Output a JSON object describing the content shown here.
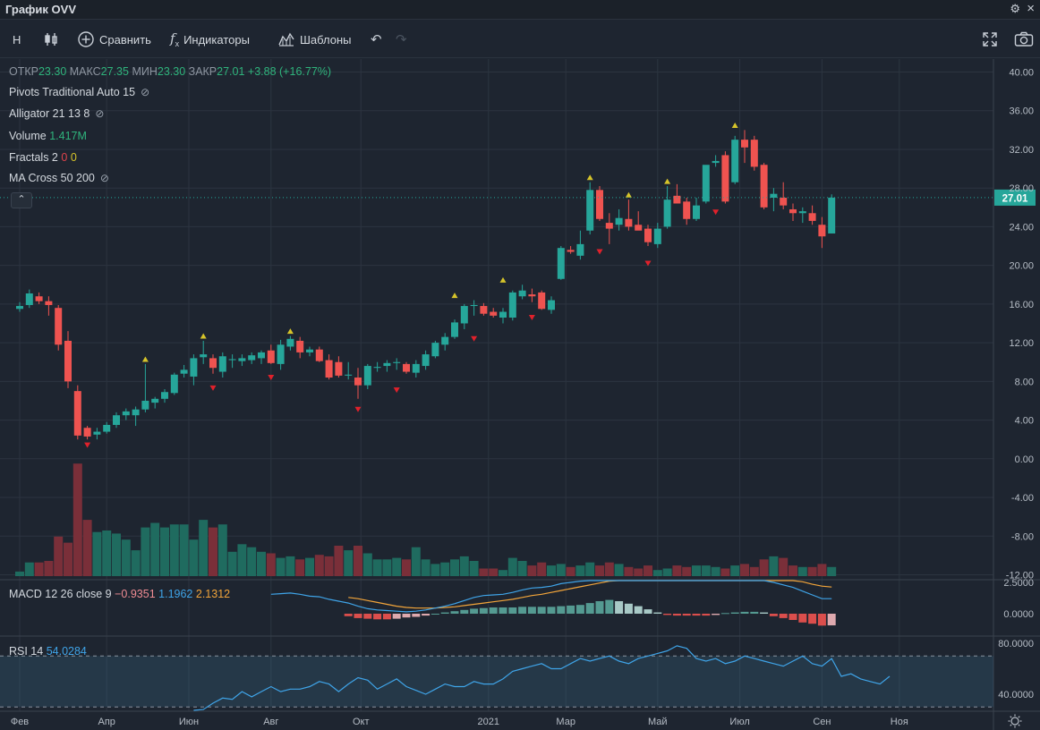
{
  "window": {
    "title": "График OVV"
  },
  "toolbar": {
    "interval": "H",
    "compare": "Сравнить",
    "indicators": "Индикаторы",
    "templates": "Шаблоны"
  },
  "ohlc": {
    "open_label": "ОТКР",
    "open": "23.30",
    "high_label": "МАКС",
    "high": "27.35",
    "low_label": "МИН",
    "low": "23.30",
    "close_label": "ЗАКР",
    "close": "27.01",
    "change": "+3.88 (+16.77%)"
  },
  "indicators": {
    "pivots": "Pivots Traditional Auto 15",
    "alligator": "Alligator 21 13 8",
    "volume_label": "Volume",
    "volume_value": "1.417M",
    "fractals_label": "Fractals 2",
    "fractals_down": "0",
    "fractals_up": "0",
    "ma_cross": "MA Cross 50 200",
    "macd_label": "MACD 12 26 close 9",
    "macd_hist": "−0.9351",
    "macd_line": "1.1962",
    "macd_signal": "2.1312",
    "rsi_label": "RSI 14",
    "rsi_value": "54.0284"
  },
  "colors": {
    "up": "#26a69a",
    "down": "#ef5350",
    "macd": "#3fa4e8",
    "signal": "#f3a53a",
    "rsi": "#3fa4e8",
    "fractal_up": "#d6c42a",
    "fractal_down": "#e0212b"
  },
  "chart_data": [
    {
      "type": "candlestick",
      "title": "OVV",
      "ylim": [
        -12,
        42
      ],
      "y_ticks": [
        "40.00",
        "36.00",
        "32.00",
        "28.00",
        "24.00",
        "20.00",
        "16.00",
        "12.00",
        "8.00",
        "4.00",
        "0.00",
        "-4.00",
        "-8.00",
        "-12.00"
      ],
      "last_price": "27.01",
      "x_ticks": [
        "Фев",
        "Апр",
        "Июн",
        "Авг",
        "Окт",
        "2021",
        "Мар",
        "Май",
        "Июл",
        "Сен",
        "Ноя"
      ],
      "x_tick_index": [
        0,
        9,
        17.5,
        26,
        35.3,
        48.5,
        56.5,
        66,
        74.5,
        83,
        91
      ],
      "candles": [
        [
          15.5,
          16.2,
          15.2,
          15.8
        ],
        [
          15.9,
          17.5,
          15.6,
          17.1
        ],
        [
          16.8,
          17.2,
          16.0,
          16.3
        ],
        [
          16.3,
          16.8,
          14.8,
          15.9
        ],
        [
          15.6,
          15.9,
          11.2,
          11.8
        ],
        [
          12.2,
          13.2,
          7.3,
          8.0
        ],
        [
          7.0,
          7.6,
          2.0,
          2.4
        ],
        [
          3.2,
          3.4,
          2.0,
          2.3
        ],
        [
          2.5,
          3.2,
          2.0,
          2.8
        ],
        [
          2.8,
          3.8,
          2.6,
          3.5
        ],
        [
          3.5,
          4.8,
          3.2,
          4.5
        ],
        [
          4.5,
          5.2,
          4.0,
          4.9
        ],
        [
          4.5,
          5.4,
          3.4,
          5.1
        ],
        [
          5.1,
          9.8,
          4.8,
          6.0
        ],
        [
          5.8,
          6.4,
          5.2,
          6.2
        ],
        [
          6.2,
          7.2,
          5.8,
          6.9
        ],
        [
          6.8,
          8.9,
          6.6,
          8.7
        ],
        [
          8.8,
          9.7,
          8.4,
          9.2
        ],
        [
          8.5,
          10.8,
          7.6,
          10.4
        ],
        [
          10.5,
          12.2,
          9.8,
          10.8
        ],
        [
          10.4,
          10.8,
          8.8,
          9.4
        ],
        [
          9.0,
          11.0,
          8.4,
          10.6
        ],
        [
          10.2,
          10.8,
          9.4,
          10.3
        ],
        [
          10.1,
          10.8,
          9.6,
          10.4
        ],
        [
          10.2,
          11.0,
          9.8,
          10.7
        ],
        [
          10.4,
          11.2,
          9.8,
          11.0
        ],
        [
          11.2,
          11.8,
          9.8,
          9.9
        ],
        [
          9.8,
          12.3,
          9.2,
          11.8
        ],
        [
          11.6,
          12.7,
          11.2,
          12.4
        ],
        [
          12.2,
          12.6,
          10.4,
          11.0
        ],
        [
          11.0,
          11.6,
          10.6,
          11.3
        ],
        [
          11.3,
          11.6,
          10.0,
          10.1
        ],
        [
          10.2,
          10.8,
          8.2,
          8.4
        ],
        [
          10.0,
          10.6,
          8.4,
          8.6
        ],
        [
          8.6,
          10.0,
          8.2,
          8.7
        ],
        [
          8.4,
          9.4,
          6.2,
          7.6
        ],
        [
          7.6,
          9.8,
          7.2,
          9.6
        ],
        [
          9.4,
          10.0,
          9.0,
          9.5
        ],
        [
          9.6,
          10.2,
          9.0,
          9.9
        ],
        [
          9.9,
          10.4,
          9.2,
          10.0
        ],
        [
          9.8,
          10.0,
          8.8,
          9.0
        ],
        [
          8.9,
          10.2,
          8.4,
          9.8
        ],
        [
          9.6,
          11.2,
          9.2,
          10.8
        ],
        [
          10.6,
          12.2,
          10.4,
          12.0
        ],
        [
          11.8,
          13.0,
          11.2,
          12.6
        ],
        [
          12.6,
          14.4,
          12.4,
          14.1
        ],
        [
          14.0,
          16.0,
          13.4,
          15.8
        ],
        [
          15.8,
          16.4,
          14.8,
          15.9
        ],
        [
          15.8,
          16.1,
          14.8,
          15.0
        ],
        [
          15.2,
          15.6,
          14.6,
          14.8
        ],
        [
          14.6,
          15.6,
          14.0,
          15.2
        ],
        [
          14.6,
          17.4,
          14.3,
          17.2
        ],
        [
          16.8,
          18.0,
          16.5,
          17.4
        ],
        [
          17.0,
          17.6,
          16.2,
          16.8
        ],
        [
          17.2,
          17.4,
          15.4,
          15.5
        ],
        [
          15.4,
          16.8,
          15.0,
          16.4
        ],
        [
          18.6,
          22.0,
          18.5,
          21.8
        ],
        [
          21.6,
          22.0,
          21.2,
          21.4
        ],
        [
          21.0,
          23.6,
          20.6,
          22.2
        ],
        [
          23.6,
          28.6,
          23.2,
          27.8
        ],
        [
          27.8,
          28.2,
          24.6,
          24.8
        ],
        [
          24.4,
          25.4,
          22.2,
          23.8
        ],
        [
          24.2,
          25.8,
          23.6,
          24.9
        ],
        [
          24.8,
          26.8,
          23.6,
          24.0
        ],
        [
          24.2,
          25.6,
          23.8,
          23.6
        ],
        [
          23.8,
          24.2,
          22.0,
          22.4
        ],
        [
          22.2,
          24.4,
          21.8,
          23.8
        ],
        [
          24.0,
          28.2,
          23.8,
          26.8
        ],
        [
          27.2,
          28.4,
          26.8,
          26.4
        ],
        [
          26.6,
          27.0,
          24.2,
          24.8
        ],
        [
          24.8,
          27.0,
          24.6,
          26.2
        ],
        [
          26.6,
          30.2,
          26.4,
          30.4
        ],
        [
          30.6,
          31.4,
          30.2,
          30.8
        ],
        [
          31.4,
          31.8,
          26.4,
          26.6
        ],
        [
          28.6,
          33.4,
          28.4,
          33.0
        ],
        [
          33.0,
          34.0,
          30.6,
          32.2
        ],
        [
          33.0,
          33.4,
          29.8,
          30.2
        ],
        [
          30.4,
          30.6,
          25.8,
          26.0
        ],
        [
          27.0,
          28.0,
          25.6,
          27.4
        ],
        [
          27.0,
          28.6,
          25.8,
          26.2
        ],
        [
          25.8,
          26.4,
          24.6,
          25.4
        ],
        [
          25.4,
          26.0,
          24.4,
          25.6
        ],
        [
          25.4,
          26.2,
          24.2,
          24.6
        ],
        [
          24.2,
          25.0,
          21.8,
          23.0
        ],
        [
          23.3,
          27.35,
          23.3,
          27.01
        ]
      ],
      "volumes": [
        0.15,
        0.45,
        0.45,
        0.5,
        1.3,
        1.1,
        3.7,
        1.85,
        1.45,
        1.5,
        1.4,
        1.2,
        0.85,
        1.6,
        1.75,
        1.6,
        1.7,
        1.7,
        1.2,
        1.85,
        1.6,
        1.7,
        0.8,
        1.05,
        0.95,
        0.8,
        0.75,
        0.6,
        0.65,
        0.55,
        0.6,
        0.7,
        0.65,
        1.0,
        0.85,
        1.0,
        0.75,
        0.55,
        0.55,
        0.6,
        0.55,
        0.95,
        0.55,
        0.4,
        0.45,
        0.55,
        0.65,
        0.5,
        0.25,
        0.25,
        0.2,
        0.6,
        0.5,
        0.35,
        0.45,
        0.35,
        0.4,
        0.3,
        0.35,
        0.45,
        0.35,
        0.45,
        0.4,
        0.3,
        0.25,
        0.35,
        0.2,
        0.25,
        0.35,
        0.3,
        0.35,
        0.35,
        0.3,
        0.25,
        0.35,
        0.4,
        0.3,
        0.55,
        0.65,
        0.6,
        0.35,
        0.3,
        0.3,
        0.4,
        0.3
      ],
      "fractals_up": [
        {
          "i": 13,
          "y": 10.3
        },
        {
          "i": 19,
          "y": 12.7
        },
        {
          "i": 28,
          "y": 13.2
        },
        {
          "i": 45,
          "y": 16.9
        },
        {
          "i": 50,
          "y": 18.5
        },
        {
          "i": 59,
          "y": 29.1
        },
        {
          "i": 63,
          "y": 27.3
        },
        {
          "i": 67,
          "y": 28.7
        },
        {
          "i": 74,
          "y": 34.5
        }
      ],
      "fractals_down": [
        {
          "i": 7,
          "y": 1.4
        },
        {
          "i": 20,
          "y": 7.3
        },
        {
          "i": 26,
          "y": 8.4
        },
        {
          "i": 35,
          "y": 5.1
        },
        {
          "i": 39,
          "y": 7.1
        },
        {
          "i": 47,
          "y": 12.4
        },
        {
          "i": 53,
          "y": 14.6
        },
        {
          "i": 60,
          "y": 21.4
        },
        {
          "i": 65,
          "y": 20.2
        },
        {
          "i": 72,
          "y": 25.5
        }
      ]
    },
    {
      "type": "line",
      "title": "MACD 12 26 close 9",
      "y_ticks": [
        "2.5000",
        "0.0000"
      ],
      "ylim": [
        -1.0,
        2.6
      ],
      "macd": [
        null,
        null,
        null,
        null,
        null,
        null,
        null,
        null,
        null,
        null,
        null,
        null,
        null,
        null,
        null,
        null,
        null,
        null,
        null,
        null,
        null,
        null,
        null,
        null,
        null,
        null,
        1.55,
        1.6,
        1.65,
        1.55,
        1.4,
        1.35,
        1.15,
        1.0,
        0.85,
        0.6,
        0.4,
        0.3,
        0.25,
        0.2,
        0.15,
        0.2,
        0.3,
        0.45,
        0.6,
        0.8,
        1.05,
        1.3,
        1.45,
        1.5,
        1.55,
        1.7,
        1.9,
        2.05,
        2.1,
        2.2,
        2.4,
        2.5,
        2.6,
        2.7,
        2.8,
        2.9,
        3.0,
        3.0,
        2.9,
        2.8,
        2.7,
        2.8,
        2.9,
        2.8,
        2.7,
        2.8,
        2.9,
        2.8,
        3.0,
        3.1,
        3.1,
        2.8,
        2.5,
        2.3,
        2.1,
        1.8,
        1.5,
        1.2,
        1.2
      ],
      "signal": [
        null,
        null,
        null,
        null,
        null,
        null,
        null,
        null,
        null,
        null,
        null,
        null,
        null,
        null,
        null,
        null,
        null,
        null,
        null,
        null,
        null,
        null,
        null,
        null,
        null,
        null,
        null,
        null,
        null,
        null,
        null,
        null,
        null,
        null,
        1.3,
        1.2,
        1.05,
        0.9,
        0.75,
        0.6,
        0.5,
        0.45,
        0.45,
        0.45,
        0.5,
        0.55,
        0.65,
        0.75,
        0.85,
        0.95,
        1.05,
        1.15,
        1.3,
        1.45,
        1.55,
        1.7,
        1.85,
        2.0,
        2.15,
        2.3,
        2.45,
        2.6,
        2.7,
        2.8,
        2.85,
        2.85,
        2.85,
        2.85,
        2.85,
        2.85,
        2.85,
        2.85,
        2.85,
        2.85,
        2.9,
        2.95,
        3.0,
        3.0,
        2.95,
        2.85,
        2.7,
        2.55,
        2.35,
        2.2,
        2.13
      ],
      "histogram": [
        null,
        null,
        null,
        null,
        null,
        null,
        null,
        null,
        null,
        null,
        null,
        null,
        null,
        null,
        null,
        null,
        null,
        null,
        null,
        null,
        null,
        null,
        null,
        null,
        null,
        null,
        null,
        null,
        null,
        null,
        null,
        null,
        null,
        null,
        -0.2,
        -0.35,
        -0.4,
        -0.45,
        -0.45,
        -0.4,
        -0.3,
        -0.25,
        -0.15,
        0.0,
        0.1,
        0.2,
        0.3,
        0.4,
        0.45,
        0.5,
        0.5,
        0.5,
        0.55,
        0.55,
        0.55,
        0.55,
        0.6,
        0.65,
        0.7,
        0.85,
        1.0,
        1.1,
        1.0,
        0.8,
        0.6,
        0.35,
        0.1,
        -0.1,
        -0.15,
        -0.15,
        -0.15,
        -0.15,
        -0.1,
        0.05,
        0.1,
        0.15,
        0.15,
        0.1,
        -0.2,
        -0.35,
        -0.5,
        -0.7,
        -0.8,
        -0.95,
        -0.93
      ]
    },
    {
      "type": "line",
      "title": "RSI 14",
      "y_ticks": [
        "80.0000",
        "40.0000"
      ],
      "ylim": [
        30,
        83
      ],
      "bands": [
        70,
        30
      ],
      "rsi": [
        null,
        null,
        null,
        null,
        null,
        null,
        null,
        null,
        null,
        null,
        null,
        null,
        null,
        null,
        null,
        null,
        null,
        null,
        26,
        28,
        33,
        37,
        36,
        42,
        38,
        42,
        46,
        42,
        44,
        44,
        46,
        50,
        48,
        42,
        48,
        53,
        51,
        44,
        48,
        52,
        46,
        43,
        40,
        44,
        48,
        46,
        46,
        50,
        48,
        48,
        52,
        58,
        60,
        62,
        64,
        60,
        60,
        64,
        68,
        66,
        68,
        70,
        66,
        64,
        68,
        70,
        72,
        74,
        78,
        76,
        68,
        66,
        68,
        64,
        66,
        70,
        68,
        66,
        64,
        62,
        66,
        70,
        64,
        62,
        68,
        54,
        56,
        52,
        50,
        48,
        54
      ]
    }
  ]
}
